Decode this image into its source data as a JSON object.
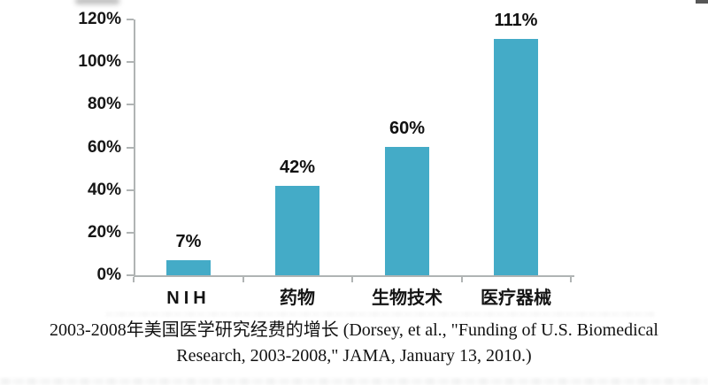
{
  "chart_data": {
    "type": "bar",
    "categories": [
      "NIH",
      "药物",
      "生物技术",
      "医疗器械"
    ],
    "values": [
      7,
      42,
      60,
      111
    ],
    "bar_labels": [
      "7%",
      "42%",
      "60%",
      "111%"
    ],
    "yticks": [
      0,
      20,
      40,
      60,
      80,
      100,
      120
    ],
    "ytick_labels": [
      "0%",
      "20%",
      "40%",
      "60%",
      "80%",
      "100%",
      "120%"
    ],
    "ylim": [
      0,
      120
    ],
    "grid": false,
    "legend_position": "none",
    "bar_color": "#44abc7",
    "axis_color": "#b0b4b4",
    "title": "2003-2008年美国医学研究经费的增长",
    "xlabel": "",
    "ylabel": ""
  },
  "caption": {
    "line1": "2003-2008年美国医学研究经费的增长 (Dorsey, et al., \"Funding of U.S. Biomedical",
    "line2": "Research, 2003-2008,\" JAMA, January 13, 2010.)"
  }
}
